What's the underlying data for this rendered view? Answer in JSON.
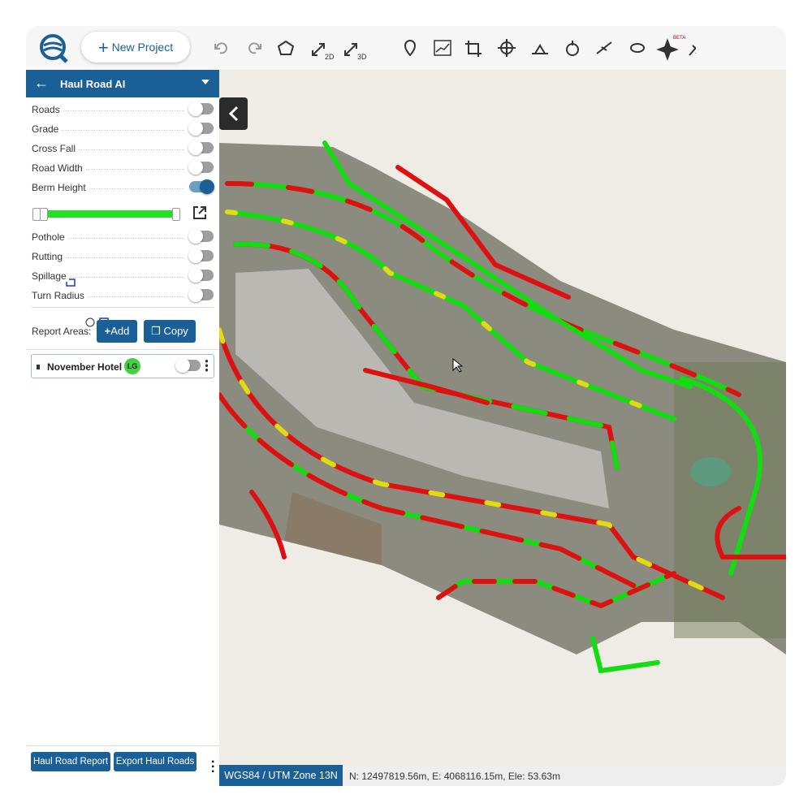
{
  "toolbar": {
    "new_project": "New Project",
    "badges": [
      "2D",
      "3D",
      "BETA"
    ]
  },
  "sidebar": {
    "title": "Haul Road AI",
    "layers": [
      {
        "label": "Roads",
        "on": false
      },
      {
        "label": "Grade",
        "on": false
      },
      {
        "label": "Cross Fall",
        "on": false
      },
      {
        "label": "Road Width",
        "on": false
      },
      {
        "label": "Berm Height",
        "on": true
      },
      {
        "label": "Pothole",
        "on": false
      },
      {
        "label": "Rutting",
        "on": false
      },
      {
        "label": "Spillage",
        "on": false
      },
      {
        "label": "Turn Radius",
        "on": false
      }
    ],
    "report_areas_label": "Report Areas:",
    "add": "Add",
    "copy": "Copy",
    "areas": [
      {
        "name": "November Hotel",
        "badge": "LG",
        "on": false
      }
    ],
    "buttons": [
      "Haul Road Report",
      "Export Haul Roads"
    ]
  },
  "status": {
    "crs": "WGS84 / UTM Zone 13N",
    "coords": "N: 12497819.56m, E: 4068116.15m, Ele: 53.63m"
  }
}
